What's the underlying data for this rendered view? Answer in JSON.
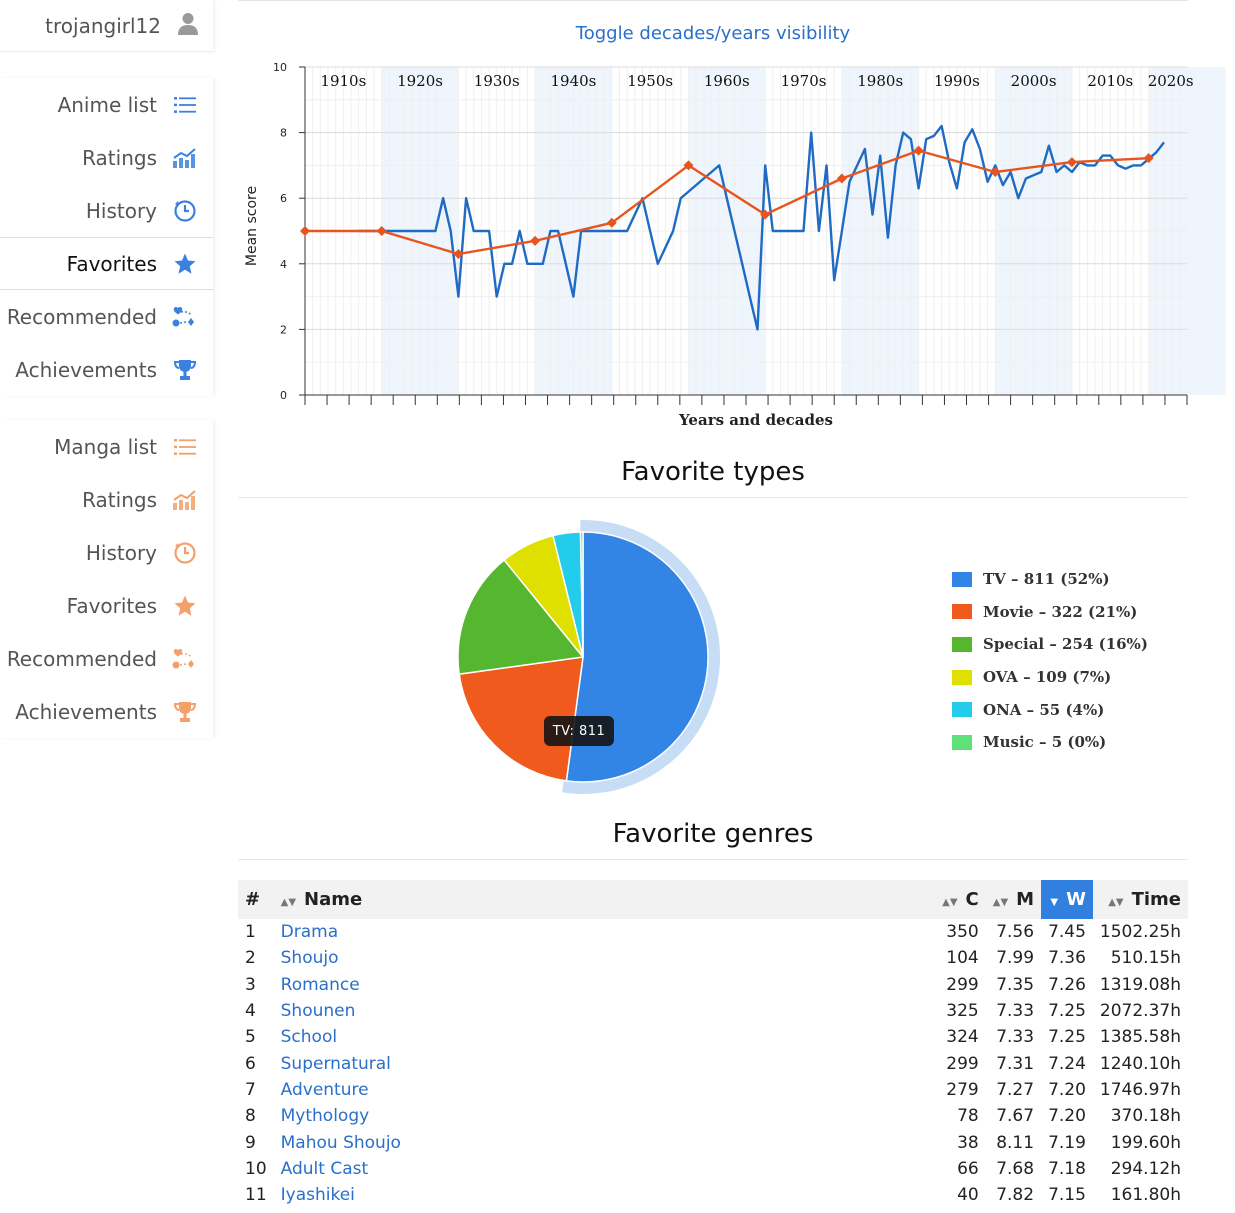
{
  "user": {
    "name": "trojangirl12",
    "icon": "user-icon"
  },
  "sidebar": {
    "anime": [
      {
        "label": "Anime list",
        "icon": "list-icon"
      },
      {
        "label": "Ratings",
        "icon": "chart-icon"
      },
      {
        "label": "History",
        "icon": "history-icon"
      },
      {
        "label": "Favorites",
        "icon": "star-icon",
        "active": true
      },
      {
        "label": "Recommended",
        "icon": "recommend-icon"
      },
      {
        "label": "Achievements",
        "icon": "trophy-icon"
      }
    ],
    "manga": [
      {
        "label": "Manga list",
        "icon": "list-icon"
      },
      {
        "label": "Ratings",
        "icon": "chart-icon"
      },
      {
        "label": "History",
        "icon": "history-icon"
      },
      {
        "label": "Favorites",
        "icon": "star-icon"
      },
      {
        "label": "Recommended",
        "icon": "recommend-icon"
      },
      {
        "label": "Achievements",
        "icon": "trophy-icon"
      }
    ],
    "colors": {
      "anime": "#3b82e0",
      "manga": "#f3a06b"
    }
  },
  "toggle_label": "Toggle decades/years visibility",
  "chart_data": [
    {
      "type": "line",
      "xlabel": "Years and decades",
      "ylabel": "Mean score",
      "ylim": [
        0,
        10
      ],
      "yticks": [
        0,
        2,
        4,
        6,
        8,
        10
      ],
      "grid": true,
      "decades": [
        "1910s",
        "1920s",
        "1930s",
        "1940s",
        "1950s",
        "1960s",
        "1970s",
        "1980s",
        "1990s",
        "2000s",
        "2010s",
        "2020s"
      ],
      "series": [
        {
          "color": "#1f6bc4",
          "x": [
            1917,
            1918,
            1919,
            1920,
            1921,
            1922,
            1923,
            1924,
            1925,
            1926,
            1927,
            1928,
            1929,
            1930,
            1931,
            1932,
            1933,
            1934,
            1935,
            1936,
            1937,
            1938,
            1939,
            1940,
            1941,
            1942,
            1943,
            1944,
            1945,
            1946,
            1947,
            1948,
            1949,
            1950,
            1951,
            1952,
            1953,
            1954,
            1955,
            1956,
            1957,
            1958,
            1959,
            1960,
            1961,
            1962,
            1963,
            1964,
            1965,
            1966,
            1967,
            1968,
            1969,
            1970,
            1971,
            1972,
            1973,
            1974,
            1975,
            1976,
            1977,
            1978,
            1979,
            1980,
            1981,
            1982,
            1983,
            1984,
            1985,
            1986,
            1987,
            1988,
            1989,
            1990,
            1991,
            1992,
            1993,
            1994,
            1995,
            1996,
            1997,
            1998,
            1999,
            2000,
            2001,
            2002,
            2003,
            2004,
            2005,
            2006,
            2007,
            2008,
            2009,
            2010,
            2011,
            2012,
            2013,
            2014,
            2015,
            2016,
            2017,
            2018,
            2019,
            2020,
            2021,
            2022
          ],
          "values": [
            5.0,
            5.0,
            5.0,
            5.0,
            5.0,
            5.0,
            5.0,
            5.0,
            5.0,
            5.0,
            5.0,
            6.0,
            5.0,
            3.0,
            6.0,
            5.0,
            5.0,
            5.0,
            3.0,
            4.0,
            4.0,
            5.0,
            4.0,
            4.0,
            4.0,
            5.0,
            5.0,
            4.0,
            3.0,
            5.0,
            5.0,
            5.0,
            5.0,
            5.0,
            5.0,
            5.0,
            5.5,
            6.0,
            5.0,
            4.0,
            4.5,
            5.0,
            6.0,
            6.2,
            6.4,
            6.6,
            6.8,
            7.0,
            6.0,
            5.0,
            4.0,
            3.0,
            2.0,
            7.0,
            5.0,
            5.0,
            5.0,
            5.0,
            5.0,
            8.0,
            5.0,
            7.0,
            3.5,
            5.0,
            6.5,
            7.0,
            7.5,
            5.5,
            7.3,
            4.8,
            7.0,
            8.0,
            7.8,
            6.3,
            7.8,
            7.9,
            8.2,
            7.1,
            6.3,
            7.7,
            8.1,
            7.5,
            6.5,
            7.0,
            6.4,
            6.8,
            6.0,
            6.6,
            6.7,
            6.8,
            7.6,
            6.8,
            7.0,
            6.8,
            7.1,
            7.0,
            7.0,
            7.3,
            7.3,
            7.0,
            6.9,
            7.0,
            7.0,
            7.2,
            7.4,
            7.7
          ]
        },
        {
          "color": "#e8541d",
          "x": [
            1910,
            1920,
            1930,
            1940,
            1950,
            1960,
            1970,
            1980,
            1990,
            2000,
            2010,
            2020
          ],
          "values": [
            5.0,
            5.0,
            4.3,
            4.7,
            5.25,
            7.0,
            5.5,
            6.6,
            7.45,
            6.8,
            7.1,
            7.22
          ]
        }
      ]
    },
    {
      "type": "pie",
      "title": "Favorite types",
      "categories": [
        "TV",
        "Movie",
        "Special",
        "OVA",
        "ONA",
        "Music"
      ],
      "values": [
        811,
        322,
        254,
        109,
        55,
        5
      ],
      "percents": [
        "52%",
        "21%",
        "16%",
        "7%",
        "4%",
        "0%"
      ],
      "colors": [
        "#3284e5",
        "#f05a1c",
        "#55b630",
        "#e0e000",
        "#22ccea",
        "#60e07a"
      ],
      "legend_placement": "right",
      "legend": [
        "TV – 811 (52%)",
        "Movie – 322 (21%)",
        "Special – 254 (16%)",
        "OVA – 109 (7%)",
        "ONA – 55 (4%)",
        "Music – 5 (0%)"
      ],
      "highlighted": "TV",
      "tooltip": "TV: 811"
    }
  ],
  "genres": {
    "title": "Favorite genres",
    "columns": {
      "num": "#",
      "name": "Name",
      "c": "C",
      "m": "M",
      "w": "W",
      "time": "Time"
    },
    "sorted_by": "W",
    "rows": [
      {
        "num": "1",
        "name": "Drama",
        "c": "350",
        "m": "7.56",
        "w": "7.45",
        "time": "1502.25h"
      },
      {
        "num": "2",
        "name": "Shoujo",
        "c": "104",
        "m": "7.99",
        "w": "7.36",
        "time": "510.15h"
      },
      {
        "num": "3",
        "name": "Romance",
        "c": "299",
        "m": "7.35",
        "w": "7.26",
        "time": "1319.08h"
      },
      {
        "num": "4",
        "name": "Shounen",
        "c": "325",
        "m": "7.33",
        "w": "7.25",
        "time": "2072.37h"
      },
      {
        "num": "5",
        "name": "School",
        "c": "324",
        "m": "7.33",
        "w": "7.25",
        "time": "1385.58h"
      },
      {
        "num": "6",
        "name": "Supernatural",
        "c": "299",
        "m": "7.31",
        "w": "7.24",
        "time": "1240.10h"
      },
      {
        "num": "7",
        "name": "Adventure",
        "c": "279",
        "m": "7.27",
        "w": "7.20",
        "time": "1746.97h"
      },
      {
        "num": "8",
        "name": "Mythology",
        "c": "78",
        "m": "7.67",
        "w": "7.20",
        "time": "370.18h"
      },
      {
        "num": "9",
        "name": "Mahou Shoujo",
        "c": "38",
        "m": "8.11",
        "w": "7.19",
        "time": "199.60h"
      },
      {
        "num": "10",
        "name": "Adult Cast",
        "c": "66",
        "m": "7.68",
        "w": "7.18",
        "time": "294.12h"
      },
      {
        "num": "11",
        "name": "Iyashikei",
        "c": "40",
        "m": "7.82",
        "w": "7.15",
        "time": "161.80h"
      }
    ]
  }
}
